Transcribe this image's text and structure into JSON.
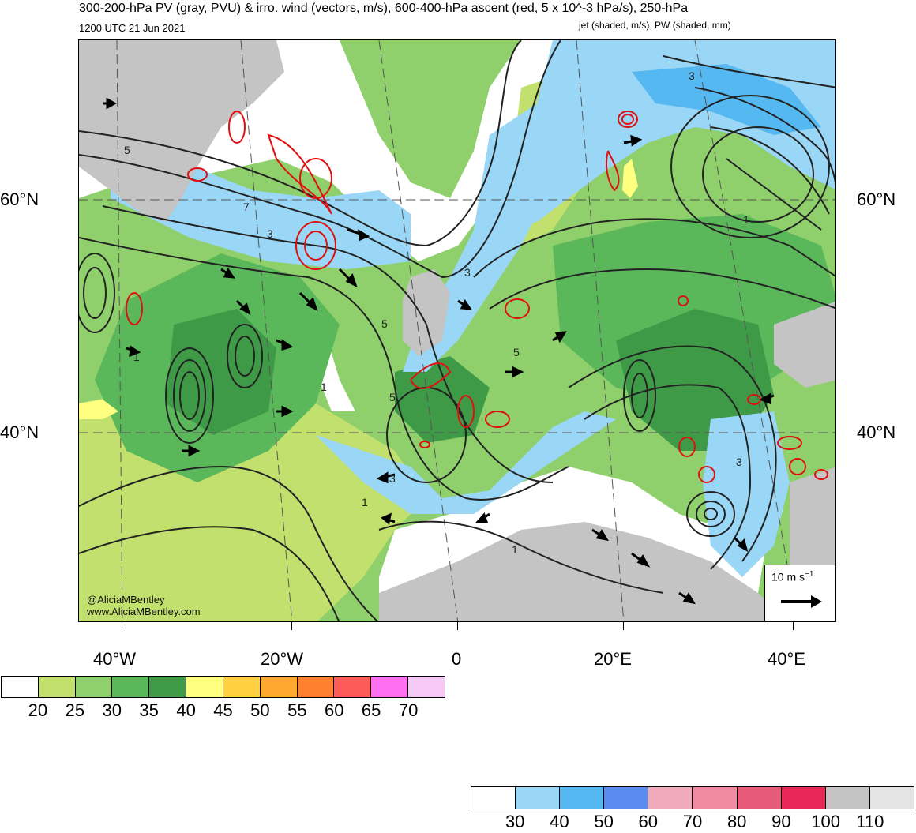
{
  "header": {
    "title": "300-200-hPa PV (gray, PVU) & irro. wind (vectors, m/s), 600-400-hPa ascent (red, 5 x 10^-3 hPa/s), 250-hPa",
    "valid_time": "1200 UTC 21 Jun 2021",
    "title_cont": "jet (shaded, m/s), PW (shaded, mm)"
  },
  "map": {
    "lat_labels": [
      "60°N",
      "40°N"
    ],
    "lon_labels": [
      "40°W",
      "20°W",
      "0",
      "20°E",
      "40°E"
    ],
    "contour_labels": [
      "5",
      "7",
      "3",
      "3",
      "5",
      "1",
      "5",
      "1",
      "3",
      "3",
      "5",
      "1",
      "1",
      "3",
      "1"
    ],
    "credit_handle": "@AliciaMBentley",
    "credit_site": "www.AliciaMBentley.com",
    "reference_vector": {
      "label": "10 m s",
      "superscript": "−1"
    }
  },
  "pw_colorbar": {
    "colors": [
      "#ffffff",
      "#c2e06e",
      "#8fd06c",
      "#5bb85a",
      "#3f9a48",
      "#ffff80",
      "#ffd040",
      "#ffa830",
      "#ff8030",
      "#ff5a5a",
      "#ff70f0",
      "#f5c8f5"
    ],
    "labels": [
      "20",
      "25",
      "30",
      "35",
      "40",
      "45",
      "50",
      "55",
      "60",
      "65",
      "70"
    ]
  },
  "jet_colorbar": {
    "colors": [
      "#ffffff",
      "#9ad6f5",
      "#55b8f0",
      "#5a8cf0",
      "#f0aabc",
      "#f08aa0",
      "#e85a7a",
      "#e82858",
      "#c4c4c4",
      "#e4e4e4"
    ],
    "labels": [
      "30",
      "40",
      "50",
      "60",
      "70",
      "80",
      "90",
      "100",
      "110"
    ]
  }
}
